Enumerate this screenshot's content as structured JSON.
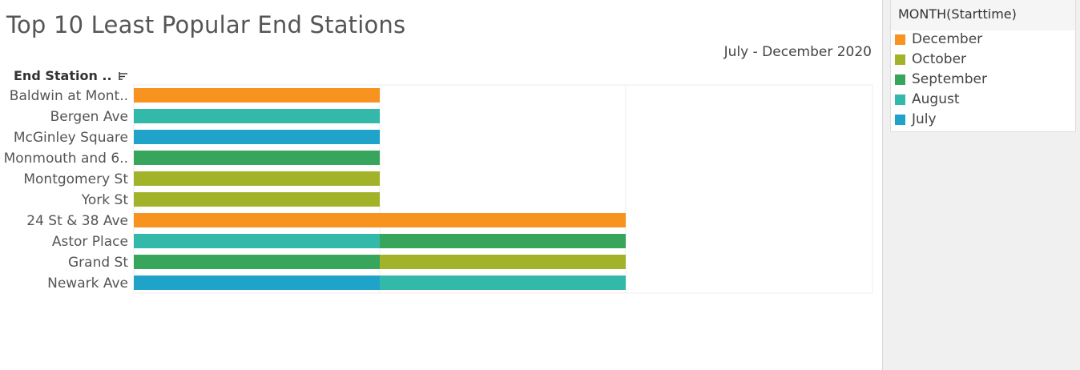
{
  "title": "Top 10 Least Popular End Stations",
  "subtitle": "July - December 2020",
  "column_header": "End Station ..",
  "legend": {
    "title": "MONTH(Starttime)",
    "items": [
      {
        "label": "December",
        "color": "#f7931e"
      },
      {
        "label": "October",
        "color": "#a2b32a"
      },
      {
        "label": "September",
        "color": "#37a65c"
      },
      {
        "label": "August",
        "color": "#32b9aa"
      },
      {
        "label": "July",
        "color": "#1fa3c9"
      }
    ]
  },
  "chart_data": {
    "type": "bar",
    "orientation": "horizontal",
    "stacked": true,
    "title": "Top 10 Least Popular End Stations",
    "subtitle": "July - December 2020",
    "categories": [
      "Baldwin at Mont..",
      "Bergen Ave",
      "McGinley Square",
      "Monmouth and 6..",
      "Montgomery St",
      "York St",
      "24 St & 38 Ave",
      "Astor Place",
      "Grand St",
      "Newark Ave"
    ],
    "series": [
      {
        "name": "July",
        "values": [
          0,
          0,
          1,
          0,
          0,
          0,
          0,
          0,
          0,
          1
        ]
      },
      {
        "name": "August",
        "values": [
          0,
          1,
          0,
          0,
          0,
          0,
          0,
          1,
          0,
          1
        ]
      },
      {
        "name": "September",
        "values": [
          0,
          0,
          0,
          1,
          0,
          0,
          0,
          1,
          1,
          0
        ]
      },
      {
        "name": "October",
        "values": [
          0,
          0,
          0,
          0,
          1,
          1,
          0,
          0,
          1,
          0
        ]
      },
      {
        "name": "December",
        "values": [
          1,
          0,
          0,
          0,
          0,
          0,
          2,
          0,
          0,
          0
        ]
      }
    ],
    "xlim": [
      0,
      3
    ],
    "grid": true,
    "legend_position": "right"
  }
}
